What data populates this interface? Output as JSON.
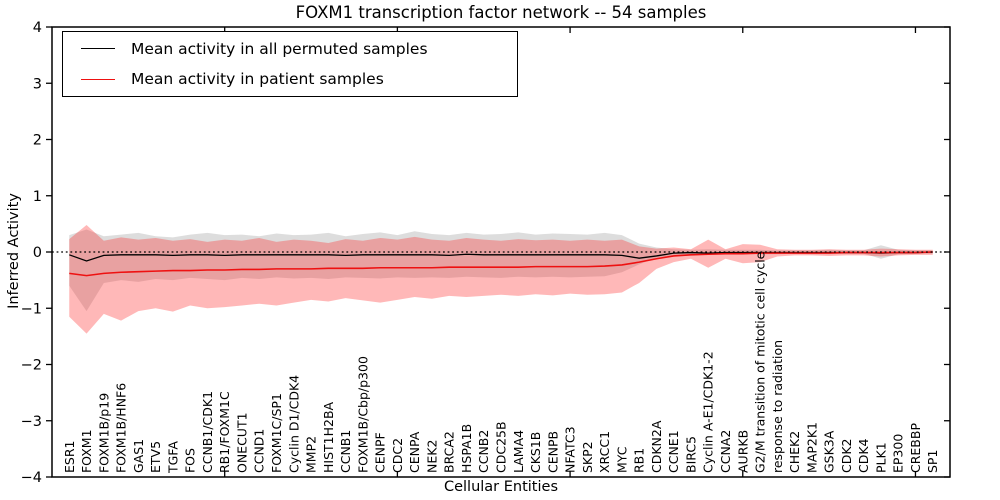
{
  "chart_data": {
    "type": "line",
    "title": "FOXM1 transcription factor network -- 54 samples",
    "xlabel": "Cellular Entities",
    "ylabel": "Inferred Activity",
    "ylim": [
      -4,
      4
    ],
    "ytick_labels": [
      "4",
      "3",
      "2",
      "1",
      "0",
      "−1",
      "−2",
      "−3",
      "−4"
    ],
    "ytick_values": [
      4,
      3,
      2,
      1,
      0,
      -1,
      -2,
      -3,
      -4
    ],
    "grid": false,
    "zero_line": "dotted",
    "legend_position": "upper-left",
    "categories": [
      "ESR1",
      "FOXM1",
      "FOXM1B/p19",
      "FOXM1B/HNF6",
      "GAS1",
      "ETV5",
      "TGFA",
      "FOS",
      "CCNB1/CDK1",
      "RB1/FOXM1C",
      "ONECUT1",
      "CCND1",
      "FOXM1C/SP1",
      "Cyclin D1/CDK4",
      "MMP2",
      "HIST1H2BA",
      "CCNB1",
      "FOXM1B/Cbp/p300",
      "CENPF",
      "CDC2",
      "CENPA",
      "NEK2",
      "BRCA2",
      "HSPA1B",
      "CCNB2",
      "CDC25B",
      "LAMA4",
      "CKS1B",
      "CENPB",
      "NFATC3",
      "SKP2",
      "XRCC1",
      "MYC",
      "RB1",
      "CDKN2A",
      "CCNE1",
      "BIRC5",
      "Cyclin A-E1/CDK1-2",
      "CCNA2",
      "AURKB",
      "G2/M transition of mitotic cell cycle",
      "response to radiation",
      "CHEK2",
      "MAP2K1",
      "GSK3A",
      "CDK2",
      "CDK4",
      "PLK1",
      "EP300",
      "CREBBP",
      "SP1"
    ],
    "series": [
      {
        "name": "Mean activity in all permuted samples",
        "color": "#000000",
        "values": [
          -0.05,
          -0.16,
          -0.06,
          -0.05,
          -0.05,
          -0.05,
          -0.06,
          -0.05,
          -0.05,
          -0.06,
          -0.05,
          -0.05,
          -0.05,
          -0.05,
          -0.05,
          -0.05,
          -0.06,
          -0.05,
          -0.05,
          -0.05,
          -0.05,
          -0.05,
          -0.06,
          -0.04,
          -0.05,
          -0.05,
          -0.05,
          -0.05,
          -0.05,
          -0.05,
          -0.05,
          -0.05,
          -0.06,
          -0.11,
          -0.07,
          -0.02,
          -0.01,
          -0.02,
          -0.01,
          -0.01,
          -0.01,
          -0.01,
          -0.01,
          -0.01,
          -0.01,
          -0.01,
          -0.01,
          -0.02,
          -0.01,
          -0.01,
          0.0
        ]
      },
      {
        "name": "Mean activity in patient samples",
        "color": "#ee1111",
        "values": [
          -0.38,
          -0.42,
          -0.38,
          -0.36,
          -0.35,
          -0.34,
          -0.33,
          -0.33,
          -0.32,
          -0.32,
          -0.31,
          -0.31,
          -0.3,
          -0.3,
          -0.3,
          -0.29,
          -0.29,
          -0.29,
          -0.28,
          -0.28,
          -0.28,
          -0.28,
          -0.27,
          -0.27,
          -0.27,
          -0.27,
          -0.27,
          -0.26,
          -0.26,
          -0.26,
          -0.26,
          -0.25,
          -0.23,
          -0.18,
          -0.12,
          -0.07,
          -0.05,
          -0.04,
          -0.03,
          -0.03,
          -0.02,
          -0.02,
          -0.02,
          -0.02,
          -0.02,
          -0.01,
          -0.01,
          -0.01,
          -0.01,
          -0.01,
          0.0
        ]
      }
    ],
    "bands": [
      {
        "name": "permuted samples range",
        "color": "rgba(120,120,120,0.25)",
        "upper": [
          0.3,
          0.4,
          0.28,
          0.31,
          0.34,
          0.28,
          0.26,
          0.31,
          0.34,
          0.3,
          0.31,
          0.28,
          0.33,
          0.3,
          0.31,
          0.34,
          0.28,
          0.32,
          0.35,
          0.3,
          0.37,
          0.32,
          0.3,
          0.34,
          0.31,
          0.32,
          0.35,
          0.31,
          0.33,
          0.32,
          0.31,
          0.34,
          0.3,
          0.15,
          0.08,
          0.05,
          0.04,
          0.05,
          0.04,
          0.04,
          0.04,
          0.03,
          0.03,
          0.03,
          0.04,
          0.03,
          0.03,
          0.12,
          0.04,
          0.03,
          0.03
        ],
        "lower": [
          -0.6,
          -1.05,
          -0.55,
          -0.5,
          -0.53,
          -0.48,
          -0.5,
          -0.46,
          -0.48,
          -0.5,
          -0.46,
          -0.48,
          -0.45,
          -0.47,
          -0.46,
          -0.48,
          -0.45,
          -0.46,
          -0.47,
          -0.45,
          -0.46,
          -0.45,
          -0.46,
          -0.44,
          -0.45,
          -0.46,
          -0.44,
          -0.45,
          -0.44,
          -0.45,
          -0.44,
          -0.43,
          -0.36,
          -0.22,
          -0.1,
          -0.06,
          -0.05,
          -0.05,
          -0.04,
          -0.04,
          -0.04,
          -0.04,
          -0.03,
          -0.04,
          -0.04,
          -0.03,
          -0.03,
          -0.12,
          -0.04,
          -0.03,
          -0.03
        ]
      },
      {
        "name": "patient samples range",
        "color": "rgba(255,40,40,0.33)",
        "upper": [
          0.23,
          0.48,
          0.2,
          0.26,
          0.22,
          0.25,
          0.2,
          0.23,
          0.18,
          0.22,
          0.2,
          0.25,
          0.18,
          0.22,
          0.2,
          0.16,
          0.23,
          0.2,
          0.25,
          0.22,
          0.27,
          0.22,
          0.2,
          0.25,
          0.22,
          0.2,
          0.23,
          0.21,
          0.22,
          0.2,
          0.22,
          0.2,
          0.22,
          0.1,
          0.06,
          0.08,
          0.05,
          0.22,
          0.05,
          0.14,
          0.13,
          0.05,
          0.04,
          0.04,
          0.05,
          0.04,
          0.04,
          0.06,
          0.05,
          0.04,
          0.04
        ],
        "lower": [
          -1.15,
          -1.45,
          -1.1,
          -1.22,
          -1.05,
          -1.0,
          -1.06,
          -0.95,
          -1.0,
          -0.98,
          -0.95,
          -0.92,
          -0.95,
          -0.9,
          -0.85,
          -0.88,
          -0.82,
          -0.86,
          -0.9,
          -0.85,
          -0.8,
          -0.83,
          -0.78,
          -0.8,
          -0.78,
          -0.76,
          -0.78,
          -0.75,
          -0.77,
          -0.74,
          -0.76,
          -0.75,
          -0.72,
          -0.55,
          -0.3,
          -0.18,
          -0.12,
          -0.28,
          -0.12,
          -0.2,
          -0.18,
          -0.08,
          -0.06,
          -0.06,
          -0.07,
          -0.06,
          -0.06,
          -0.08,
          -0.06,
          -0.05,
          -0.05
        ]
      }
    ]
  },
  "legend": {
    "entries": [
      {
        "label": "Mean activity in all permuted samples",
        "color": "#000000"
      },
      {
        "label": "Mean activity in patient samples",
        "color": "#ee1111"
      }
    ]
  }
}
